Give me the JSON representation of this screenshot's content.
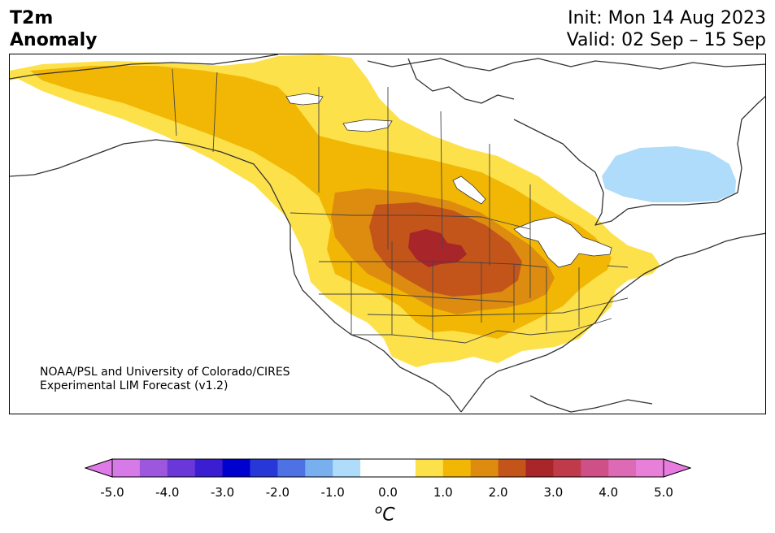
{
  "header": {
    "title_line1": "T2m",
    "title_line2": "Anomaly",
    "init": "Init: Mon 14 Aug 2023",
    "valid": "Valid: 02 Sep – 15 Sep"
  },
  "credit": {
    "line1": "NOAA/PSL and University of Colorado/CIRES",
    "line2": "Experimental LIM Forecast (v1.2)"
  },
  "colorbar": {
    "unit": "oC",
    "unit_base": "C",
    "unit_super": "o",
    "ticks": [
      "-5.0",
      "-4.0",
      "-3.0",
      "-2.0",
      "-1.0",
      "0.0",
      "1.0",
      "2.0",
      "3.0",
      "4.0",
      "5.0"
    ],
    "colors": [
      "#d67ae8",
      "#9c57dc",
      "#6a38d8",
      "#3b1ed2",
      "#0000cf",
      "#2838d8",
      "#4e72e4",
      "#78b0ef",
      "#aedcfa",
      "#ffffff",
      "#ffffff",
      "#fde14b",
      "#f2b705",
      "#de8c10",
      "#c3551b",
      "#a8252a",
      "#c03b4a",
      "#ce5086",
      "#dd6ab4",
      "#e87fd8"
    ],
    "under_color": "#e07ae8",
    "over_color": "#e87ae0"
  },
  "map": {
    "land_outline_color": "#333333",
    "anomaly_levels_c": [
      1,
      1.5,
      2,
      2.5,
      3
    ]
  }
}
